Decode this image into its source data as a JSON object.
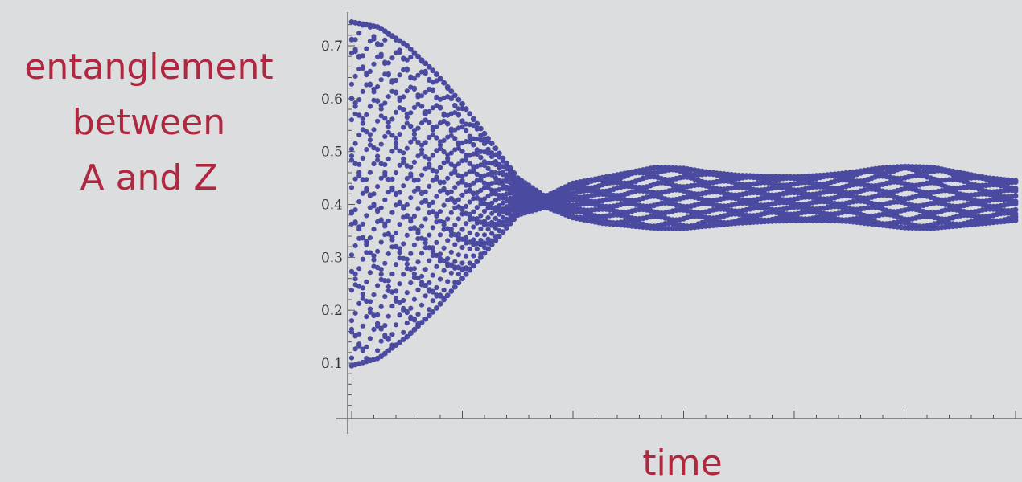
{
  "chart_data": {
    "type": "scatter",
    "ylabel_lines": [
      "entanglement",
      "between",
      "A and Z"
    ],
    "xlabel": "time",
    "ylim": [
      0,
      0.75
    ],
    "yticks": [
      {
        "value": 0.1,
        "label": "0.1"
      },
      {
        "value": 0.2,
        "label": "0.2"
      },
      {
        "value": 0.3,
        "label": "0.3"
      },
      {
        "value": 0.4,
        "label": "0.4"
      },
      {
        "value": 0.5,
        "label": "0.5"
      },
      {
        "value": 0.6,
        "label": "0.6"
      },
      {
        "value": 0.7,
        "label": "0.7"
      }
    ],
    "xlim": [
      0,
      6
    ],
    "xtick_major_every": 1,
    "xtick_minor_per_major": 5,
    "grid": false,
    "marker_color": "#4a4aa0",
    "series": [
      {
        "envelope": {
          "x": [
            0,
            0.25,
            0.5,
            0.75,
            1.0,
            1.25,
            1.5,
            1.75,
            2.0,
            2.25,
            2.5,
            2.75,
            3.0,
            3.25,
            3.5,
            3.75,
            4.0,
            4.25,
            4.5,
            4.75,
            5.0,
            5.25,
            5.5,
            5.75,
            6.0
          ],
          "upper": [
            0.745,
            0.735,
            0.7,
            0.65,
            0.59,
            0.52,
            0.45,
            0.415,
            0.44,
            0.45,
            0.46,
            0.47,
            0.468,
            0.46,
            0.455,
            0.453,
            0.452,
            0.455,
            0.46,
            0.468,
            0.472,
            0.47,
            0.46,
            0.45,
            0.445
          ],
          "lower": [
            0.095,
            0.11,
            0.15,
            0.2,
            0.26,
            0.32,
            0.38,
            0.395,
            0.375,
            0.365,
            0.36,
            0.355,
            0.355,
            0.36,
            0.365,
            0.368,
            0.37,
            0.37,
            0.368,
            0.362,
            0.356,
            0.355,
            0.36,
            0.365,
            0.37
          ]
        }
      }
    ]
  }
}
